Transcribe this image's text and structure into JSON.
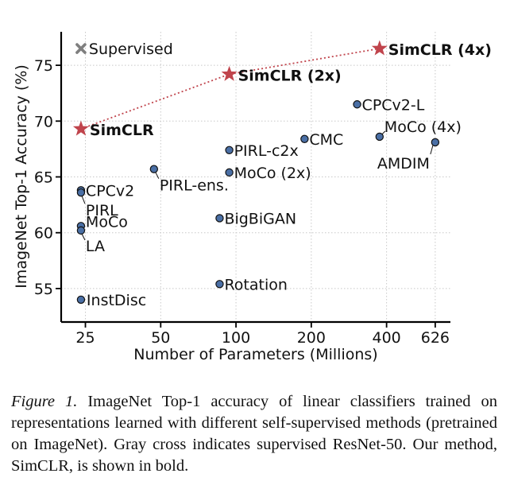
{
  "chart_data": {
    "type": "scatter",
    "xlabel": "Number of Parameters (Millions)",
    "ylabel": "ImageNet Top-1 Accuracy (%)",
    "x_scale": "log",
    "x_ticks": [
      25,
      50,
      100,
      200,
      400,
      626
    ],
    "y_ticks": [
      55,
      60,
      65,
      70,
      75
    ],
    "xlim": [
      20,
      720
    ],
    "ylim": [
      52,
      78
    ],
    "grid": true,
    "legend_placement": "top-left",
    "legend": [
      {
        "marker": "x",
        "label": "Supervised",
        "color": "#7f7f7f"
      }
    ],
    "line_series": [
      {
        "x": [
          24,
          94,
          375
        ],
        "y": [
          69.3,
          74.2,
          76.5
        ],
        "style": "dotted",
        "color": "#c0444c"
      }
    ],
    "points": [
      {
        "label": "SimCLR",
        "x": 24,
        "y": 69.3,
        "marker": "star",
        "bold": true,
        "color": "#c0444c"
      },
      {
        "label": "SimCLR (2x)",
        "x": 94,
        "y": 74.2,
        "marker": "star",
        "bold": true,
        "color": "#c0444c"
      },
      {
        "label": "SimCLR (4x)",
        "x": 375,
        "y": 76.5,
        "marker": "star",
        "bold": true,
        "color": "#c0444c"
      },
      {
        "label": "Supervised",
        "x": 24,
        "y": 76.5,
        "marker": "x",
        "color": "#7f7f7f"
      },
      {
        "label": "CPCv2-L",
        "x": 305,
        "y": 71.5,
        "marker": "circle"
      },
      {
        "label": "MoCo (4x)",
        "x": 375,
        "y": 68.6,
        "marker": "circle"
      },
      {
        "label": "AMDIM",
        "x": 626,
        "y": 68.1,
        "marker": "circle"
      },
      {
        "label": "CMC",
        "x": 188,
        "y": 68.4,
        "marker": "circle"
      },
      {
        "label": "PIRL-c2x",
        "x": 94,
        "y": 67.4,
        "marker": "circle"
      },
      {
        "label": "MoCo (2x)",
        "x": 94,
        "y": 65.4,
        "marker": "circle"
      },
      {
        "label": "PIRL-ens.",
        "x": 47,
        "y": 65.7,
        "marker": "circle"
      },
      {
        "label": "CPCv2",
        "x": 24,
        "y": 63.8,
        "marker": "circle"
      },
      {
        "label": "PIRL",
        "x": 24,
        "y": 63.6,
        "marker": "circle"
      },
      {
        "label": "BigBiGAN",
        "x": 86,
        "y": 61.3,
        "marker": "circle"
      },
      {
        "label": "MoCo",
        "x": 24,
        "y": 60.6,
        "marker": "circle"
      },
      {
        "label": "LA",
        "x": 24,
        "y": 60.2,
        "marker": "circle"
      },
      {
        "label": "Rotation",
        "x": 86,
        "y": 55.4,
        "marker": "circle"
      },
      {
        "label": "InstDisc",
        "x": 24,
        "y": 54.0,
        "marker": "circle"
      }
    ]
  },
  "caption": {
    "figure_label": "Figure 1.",
    "text": "ImageNet Top-1 accuracy of linear classifiers trained on representations learned with different self-supervised methods (pretrained on ImageNet). Gray cross indicates supervised ResNet-50. Our method, SimCLR, is shown in bold."
  }
}
